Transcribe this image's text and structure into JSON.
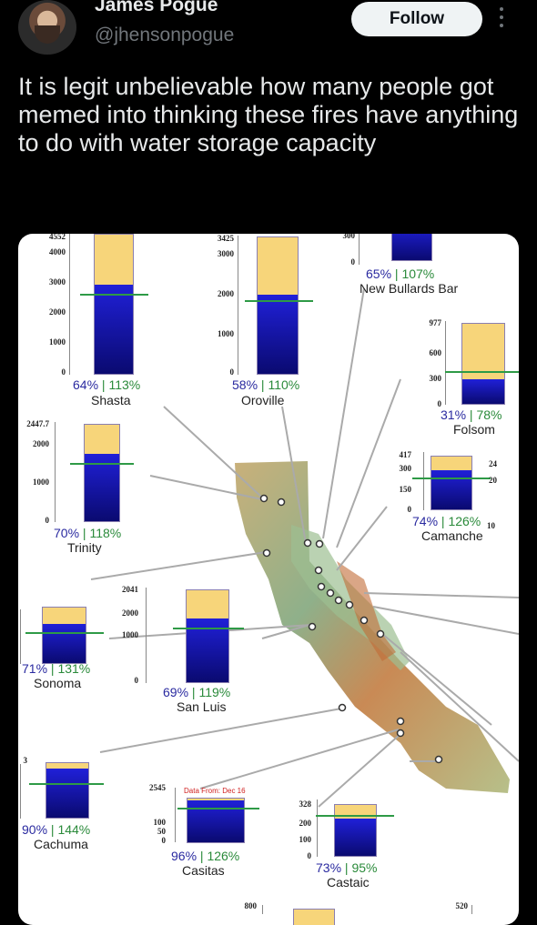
{
  "header": {
    "display_name": "James Pogue",
    "handle": "@jhensonpogue",
    "follow_label": "Follow"
  },
  "tweet": {
    "text": "It is legit unbelievable how many people got memed into thinking these fires have anything to do with water storage capacity"
  },
  "colors": {
    "storage": "#1a1ab0",
    "capacity": "#f7d57a",
    "average": "#2e9a46"
  },
  "reservoirs": {
    "shasta": {
      "name": "Shasta",
      "pct_capacity": "64%",
      "pct_average": "113%",
      "ticks": [
        "4552",
        "4000",
        "3000",
        "2000",
        "1000",
        "0"
      ],
      "fill": 0.64,
      "avg": 0.57
    },
    "oroville": {
      "name": "Oroville",
      "pct_capacity": "58%",
      "pct_average": "110%",
      "ticks": [
        "3425",
        "3000",
        "2000",
        "1000",
        "0"
      ],
      "fill": 0.58,
      "avg": 0.53
    },
    "bullards": {
      "name": "New Bullards Bar",
      "pct_capacity": "65%",
      "pct_average": "107%",
      "ticks": [
        "300",
        "0"
      ],
      "fill": 0.65,
      "avg": 0.6
    },
    "folsom": {
      "name": "Folsom",
      "pct_capacity": "31%",
      "pct_average": "78%",
      "ticks": [
        "977",
        "600",
        "300",
        "0"
      ],
      "fill": 0.31,
      "avg": 0.4
    },
    "trinity": {
      "name": "Trinity",
      "pct_capacity": "70%",
      "pct_average": "118%",
      "ticks": [
        "2447.7",
        "2000",
        "1000",
        "0"
      ],
      "fill": 0.7,
      "avg": 0.59
    },
    "camanche": {
      "name": "Camanche",
      "pct_capacity": "74%",
      "pct_average": "126%",
      "ticks": [
        "417",
        "300",
        "150",
        "0"
      ],
      "fill": 0.74,
      "avg": 0.59
    },
    "sonoma": {
      "name": "Sonoma",
      "pct_capacity": "71%",
      "pct_average": "131%",
      "ticks": [],
      "fill": 0.71,
      "avg": 0.54
    },
    "sanluis": {
      "name": "San Luis",
      "pct_capacity": "69%",
      "pct_average": "119%",
      "ticks": [
        "2041",
        "2000",
        "1000",
        "0"
      ],
      "fill": 0.69,
      "avg": 0.58
    },
    "cachuma": {
      "name": "Cachuma",
      "pct_capacity": "90%",
      "pct_average": "144%",
      "ticks": [],
      "fill": 0.9,
      "avg": 0.62
    },
    "casitas": {
      "name": "Casitas",
      "pct_capacity": "96%",
      "pct_average": "126%",
      "ticks": [
        "2545",
        "100",
        "50",
        "0"
      ],
      "fill": 0.96,
      "avg": 0.76,
      "note": "Data From: Dec 16"
    },
    "castaic": {
      "name": "Castaic",
      "pct_capacity": "73%",
      "pct_average": "95%",
      "ticks": [
        "328",
        "200",
        "100",
        "0"
      ],
      "fill": 0.73,
      "avg": 0.77
    }
  },
  "partial_ticks": {
    "right_top": "24",
    "right_mid": "20",
    "right_low": "10",
    "left_three": "3",
    "bottom_left": "800",
    "bottom_right": "520"
  }
}
